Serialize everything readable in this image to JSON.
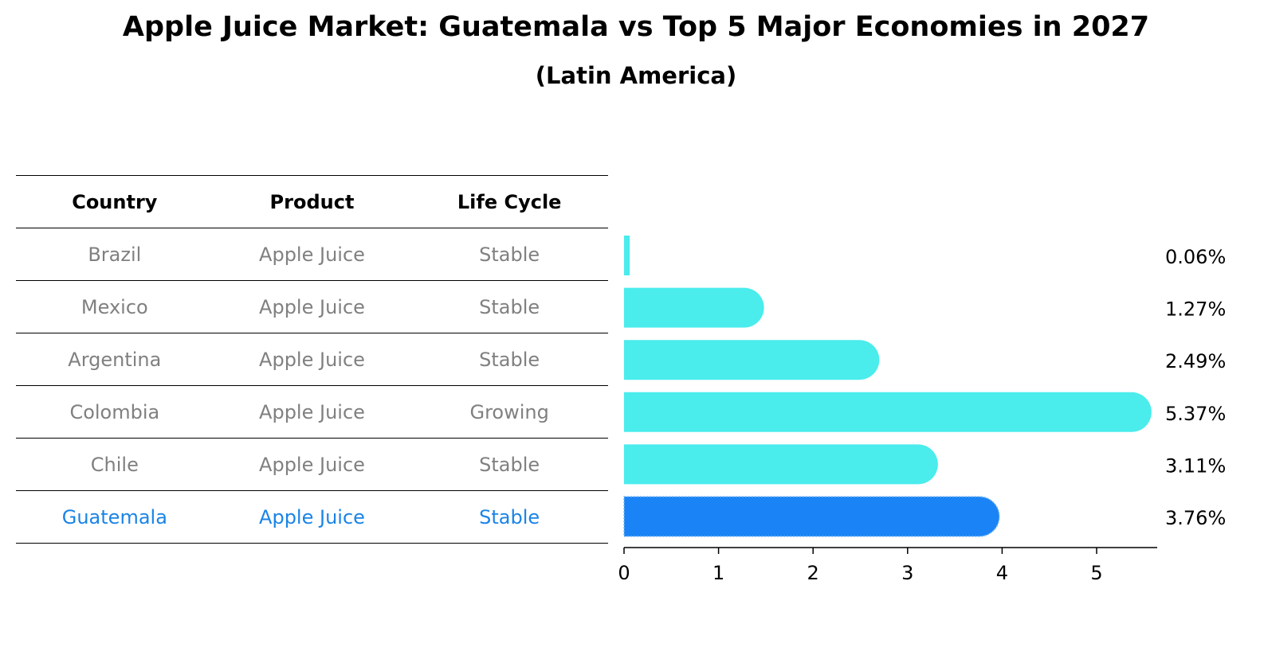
{
  "title": "Apple Juice Market: Guatemala vs Top 5 Major Economies in 2027",
  "subtitle": "(Latin America)",
  "table": {
    "headers": [
      "Country",
      "Product",
      "Life Cycle"
    ],
    "rows": [
      {
        "country": "Brazil",
        "product": "Apple Juice",
        "life_cycle": "Stable"
      },
      {
        "country": "Mexico",
        "product": "Apple Juice",
        "life_cycle": "Stable"
      },
      {
        "country": "Argentina",
        "product": "Apple Juice",
        "life_cycle": "Stable"
      },
      {
        "country": "Colombia",
        "product": "Apple Juice",
        "life_cycle": "Growing"
      },
      {
        "country": "Chile",
        "product": "Apple Juice",
        "life_cycle": "Stable"
      },
      {
        "country": "Guatemala",
        "product": "Apple Juice",
        "life_cycle": "Stable"
      }
    ]
  },
  "chart_data": {
    "type": "bar",
    "orientation": "horizontal",
    "categories": [
      "Brazil",
      "Mexico",
      "Argentina",
      "Colombia",
      "Chile",
      "Guatemala"
    ],
    "values": [
      0.06,
      1.27,
      2.49,
      5.37,
      3.11,
      3.76
    ],
    "value_labels": [
      "0.06%",
      "1.27%",
      "2.49%",
      "5.37%",
      "3.11%",
      "3.76%"
    ],
    "highlight": "Guatemala",
    "xticks": [
      "0",
      "1",
      "2",
      "3",
      "4",
      "5"
    ],
    "xlim": [
      0,
      5.66
    ],
    "grid": false,
    "colors": {
      "default": "#4aecec",
      "highlight": "#1a84f6"
    }
  }
}
